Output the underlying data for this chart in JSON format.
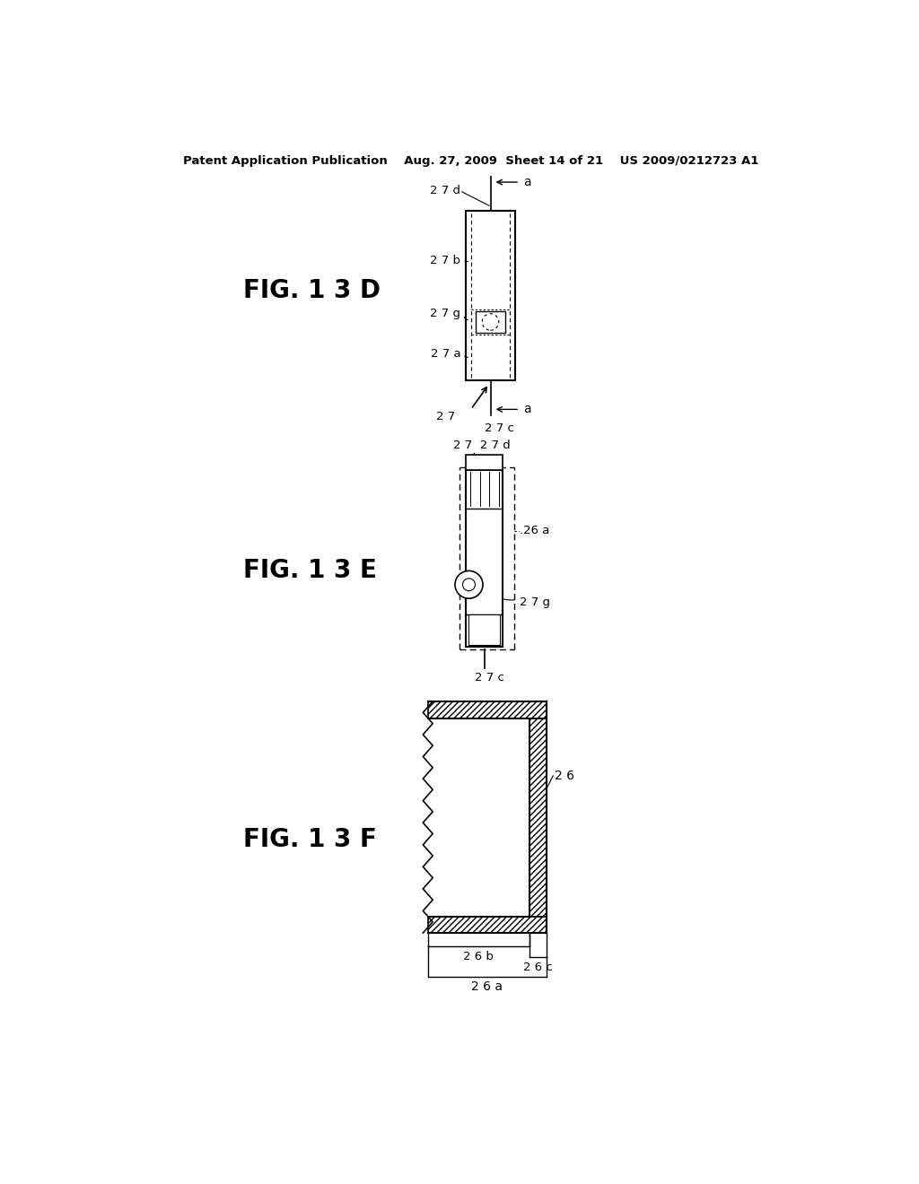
{
  "bg_color": "#ffffff",
  "line_color": "#000000",
  "header": "Patent Application Publication    Aug. 27, 2009  Sheet 14 of 21    US 2009/0212723 A1",
  "fig13d_label": "FIG. 1 3 D",
  "fig13e_label": "FIG. 1 3 E",
  "fig13f_label": "FIG. 1 3 F"
}
